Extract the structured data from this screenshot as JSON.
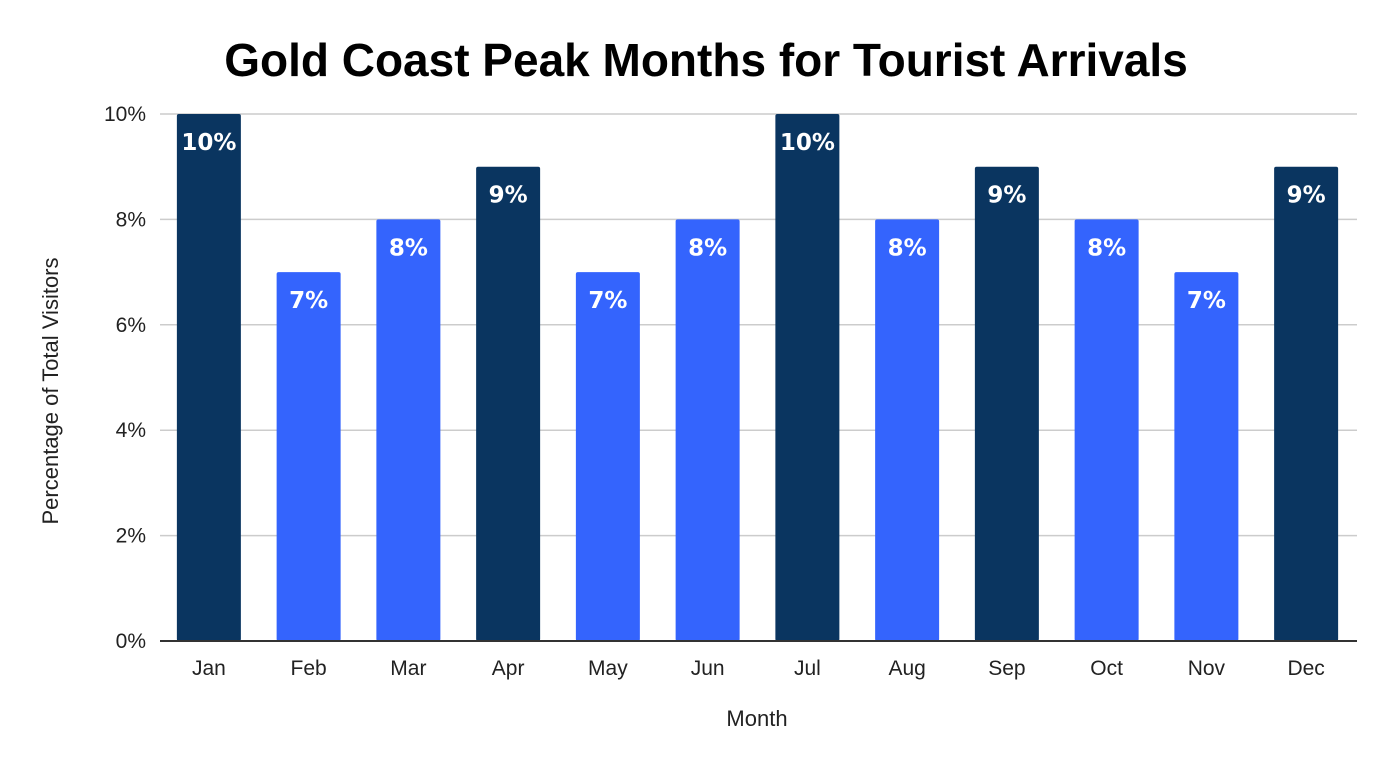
{
  "chart_data": {
    "type": "bar",
    "title": "Gold Coast Peak Months for Tourist Arrivals",
    "xlabel": "Month",
    "ylabel": "Percentage of Total Visitors",
    "categories": [
      "Jan",
      "Feb",
      "Mar",
      "Apr",
      "May",
      "Jun",
      "Jul",
      "Aug",
      "Sep",
      "Oct",
      "Nov",
      "Dec"
    ],
    "values": [
      10,
      7,
      8,
      9,
      7,
      8,
      10,
      8,
      9,
      8,
      7,
      9
    ],
    "data_labels": [
      "10%",
      "7%",
      "8%",
      "9%",
      "7%",
      "8%",
      "10%",
      "8%",
      "9%",
      "8%",
      "7%",
      "9%"
    ],
    "ylim": [
      0,
      10
    ],
    "yticks": [
      0,
      2,
      4,
      6,
      8,
      10
    ],
    "ytick_labels": [
      "0%",
      "2%",
      "4%",
      "6%",
      "8%",
      "10%"
    ],
    "grid": true,
    "legend": "none",
    "colors": {
      "peak": "#0a3560",
      "regular": "#3464fd",
      "grid": "#cccccc",
      "axis": "#333333"
    },
    "peak_months": [
      "Jan",
      "Apr",
      "Jul",
      "Sep",
      "Dec"
    ]
  }
}
